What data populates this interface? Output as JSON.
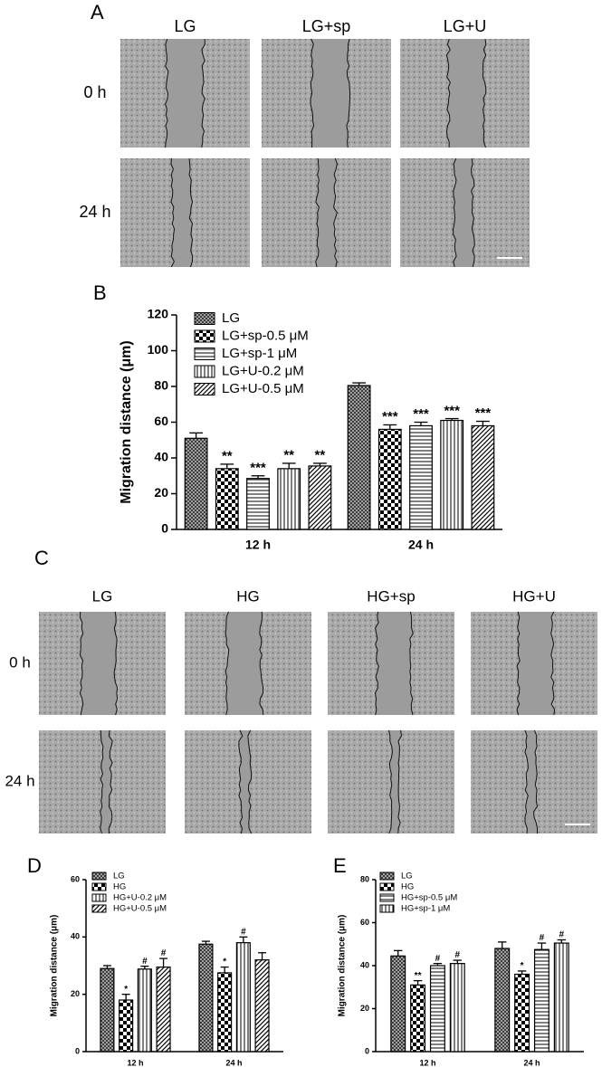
{
  "panel_a": {
    "letter": "A",
    "columns": [
      "LG",
      "LG+sp",
      "LG+U"
    ],
    "rows": [
      "0 h",
      "24 h"
    ]
  },
  "panel_c": {
    "letter": "C",
    "columns": [
      "LG",
      "HG",
      "HG+sp",
      "HG+U"
    ],
    "rows": [
      "0 h",
      "24 h"
    ]
  },
  "chart_data": [
    {
      "type": "bar",
      "panel": "B",
      "ylabel": "Migration distance (μm)",
      "categories": [
        "12 h",
        "24 h"
      ],
      "ylim": [
        0,
        120
      ],
      "yticks": [
        0,
        20,
        40,
        60,
        80,
        100,
        120
      ],
      "series": [
        {
          "name": "LG",
          "pattern": "crosshatch",
          "color": "#000000",
          "values": [
            51,
            80.5
          ],
          "errors": [
            3,
            1.5
          ]
        },
        {
          "name": "LG+sp-0.5 μM",
          "pattern": "checker",
          "color": "#000000",
          "values": [
            34,
            56
          ],
          "errors": [
            2.5,
            2.5
          ],
          "annotations": [
            "**",
            "***"
          ]
        },
        {
          "name": "LG+sp-1 μM",
          "pattern": "hlines",
          "color": "#000000",
          "values": [
            28.5,
            58
          ],
          "errors": [
            1.5,
            2
          ],
          "annotations": [
            "***",
            "***"
          ]
        },
        {
          "name": "LG+U-0.2 μM",
          "pattern": "vlines",
          "color": "#000000",
          "values": [
            34,
            61
          ],
          "errors": [
            3,
            1
          ],
          "annotations": [
            "**",
            "***"
          ]
        },
        {
          "name": "LG+U-0.5 μM",
          "pattern": "diag",
          "color": "#000000",
          "values": [
            35.5,
            58
          ],
          "errors": [
            1.5,
            2.5
          ],
          "annotations": [
            "**",
            "***"
          ]
        }
      ]
    },
    {
      "type": "bar",
      "panel": "D",
      "ylabel": "Migration distance (μm)",
      "categories": [
        "12 h",
        "24 h"
      ],
      "ylim": [
        0,
        60
      ],
      "yticks": [
        0,
        20,
        40,
        60
      ],
      "series": [
        {
          "name": "LG",
          "pattern": "crosshatch",
          "color": "#000000",
          "values": [
            29,
            37.5
          ],
          "errors": [
            1,
            1
          ]
        },
        {
          "name": "HG",
          "pattern": "checker",
          "color": "#000000",
          "values": [
            18,
            27.5
          ],
          "errors": [
            2,
            2
          ],
          "annotations": [
            "*",
            "*"
          ]
        },
        {
          "name": "HG+U-0.2 μM",
          "pattern": "vlines",
          "color": "#000000",
          "values": [
            28.8,
            38
          ],
          "errors": [
            1,
            2
          ],
          "annotations": [
            "#",
            "#"
          ]
        },
        {
          "name": "HG+U-0.5 μM",
          "pattern": "diag",
          "color": "#000000",
          "values": [
            29.5,
            32
          ],
          "errors": [
            3,
            2.5
          ],
          "annotations": [
            "#",
            null
          ]
        }
      ]
    },
    {
      "type": "bar",
      "panel": "E",
      "ylabel": "Migration distance (μm)",
      "categories": [
        "12 h",
        "24 h"
      ],
      "ylim": [
        0,
        80
      ],
      "yticks": [
        0,
        20,
        40,
        60,
        80
      ],
      "series": [
        {
          "name": "LG",
          "pattern": "crosshatch",
          "color": "#000000",
          "values": [
            44.5,
            48
          ],
          "errors": [
            2.5,
            3
          ]
        },
        {
          "name": "HG",
          "pattern": "checker",
          "color": "#000000",
          "values": [
            31,
            36
          ],
          "errors": [
            2,
            1.5
          ],
          "annotations": [
            "**",
            "*"
          ]
        },
        {
          "name": "HG+sp-0.5 μM",
          "pattern": "hlines",
          "color": "#000000",
          "values": [
            40,
            47.5
          ],
          "errors": [
            1,
            3
          ],
          "annotations": [
            "#",
            "#"
          ]
        },
        {
          "name": "HG+sp-1 μM",
          "pattern": "vlines",
          "color": "#000000",
          "values": [
            41,
            50.5
          ],
          "errors": [
            1.5,
            1.5
          ],
          "annotations": [
            "#",
            "#"
          ]
        }
      ]
    }
  ]
}
